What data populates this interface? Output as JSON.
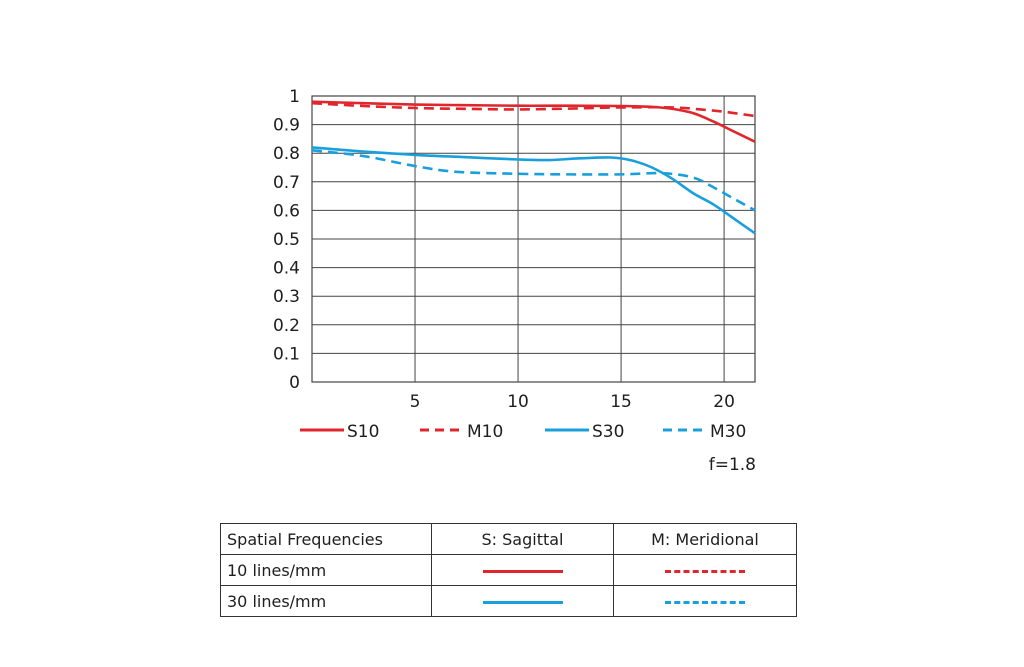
{
  "chart_data": {
    "type": "line",
    "xlabel": "",
    "ylabel": "",
    "xlim": [
      0,
      21.5
    ],
    "ylim": [
      0,
      1
    ],
    "xticks": [
      "5",
      "10",
      "15",
      "20"
    ],
    "xtick_values": [
      5,
      10,
      15,
      20
    ],
    "yticks": [
      "0",
      "0.1",
      "0.2",
      "0.3",
      "0.4",
      "0.5",
      "0.6",
      "0.7",
      "0.8",
      "0.9",
      "1"
    ],
    "ytick_values": [
      0,
      0.1,
      0.2,
      0.3,
      0.4,
      0.5,
      0.6,
      0.7,
      0.8,
      0.9,
      1
    ],
    "grid": true,
    "legend_position": "bottom",
    "series": [
      {
        "name": "S10",
        "color": "#e0262c",
        "style": "solid",
        "x": [
          0,
          2.5,
          5,
          7.5,
          10,
          12.5,
          15,
          16.5,
          17.5,
          18.5,
          19.5,
          20.5,
          21.5
        ],
        "y": [
          0.98,
          0.975,
          0.97,
          0.968,
          0.966,
          0.966,
          0.965,
          0.962,
          0.955,
          0.94,
          0.91,
          0.875,
          0.84
        ]
      },
      {
        "name": "M10",
        "color": "#e0262c",
        "style": "dashed",
        "x": [
          0,
          2.5,
          5,
          7.5,
          10,
          12.5,
          15,
          17.5,
          19,
          20,
          21.5
        ],
        "y": [
          0.975,
          0.965,
          0.958,
          0.955,
          0.953,
          0.956,
          0.96,
          0.96,
          0.952,
          0.945,
          0.93
        ]
      },
      {
        "name": "S30",
        "color": "#19a0dc",
        "style": "solid",
        "x": [
          0,
          2.5,
          5,
          7.5,
          10,
          11.5,
          13,
          14.5,
          15.5,
          16.5,
          17.5,
          18.5,
          19.5,
          20.5,
          21.5
        ],
        "y": [
          0.82,
          0.806,
          0.794,
          0.786,
          0.778,
          0.776,
          0.782,
          0.785,
          0.775,
          0.75,
          0.71,
          0.66,
          0.62,
          0.57,
          0.52
        ]
      },
      {
        "name": "M30",
        "color": "#19a0dc",
        "style": "dashed",
        "x": [
          0,
          2.5,
          5,
          7,
          10,
          12.5,
          15,
          17,
          18.5,
          19.5,
          20.5,
          21.5
        ],
        "y": [
          0.81,
          0.79,
          0.755,
          0.735,
          0.728,
          0.726,
          0.726,
          0.73,
          0.715,
          0.68,
          0.64,
          0.6
        ]
      }
    ]
  },
  "legend": [
    {
      "label": "S10",
      "color": "#e0262c",
      "style": "solid"
    },
    {
      "label": "M10",
      "color": "#e0262c",
      "style": "dashed"
    },
    {
      "label": "S30",
      "color": "#19a0dc",
      "style": "solid"
    },
    {
      "label": "M30",
      "color": "#19a0dc",
      "style": "dashed"
    }
  ],
  "aperture_note": "f=1.8",
  "key_table": {
    "headers": [
      "Spatial Frequencies",
      "S: Sagittal",
      "M: Meridional"
    ],
    "rows": [
      {
        "label": "10 lines/mm",
        "color": "#e0262c"
      },
      {
        "label": "30 lines/mm",
        "color": "#19a0dc"
      }
    ]
  }
}
